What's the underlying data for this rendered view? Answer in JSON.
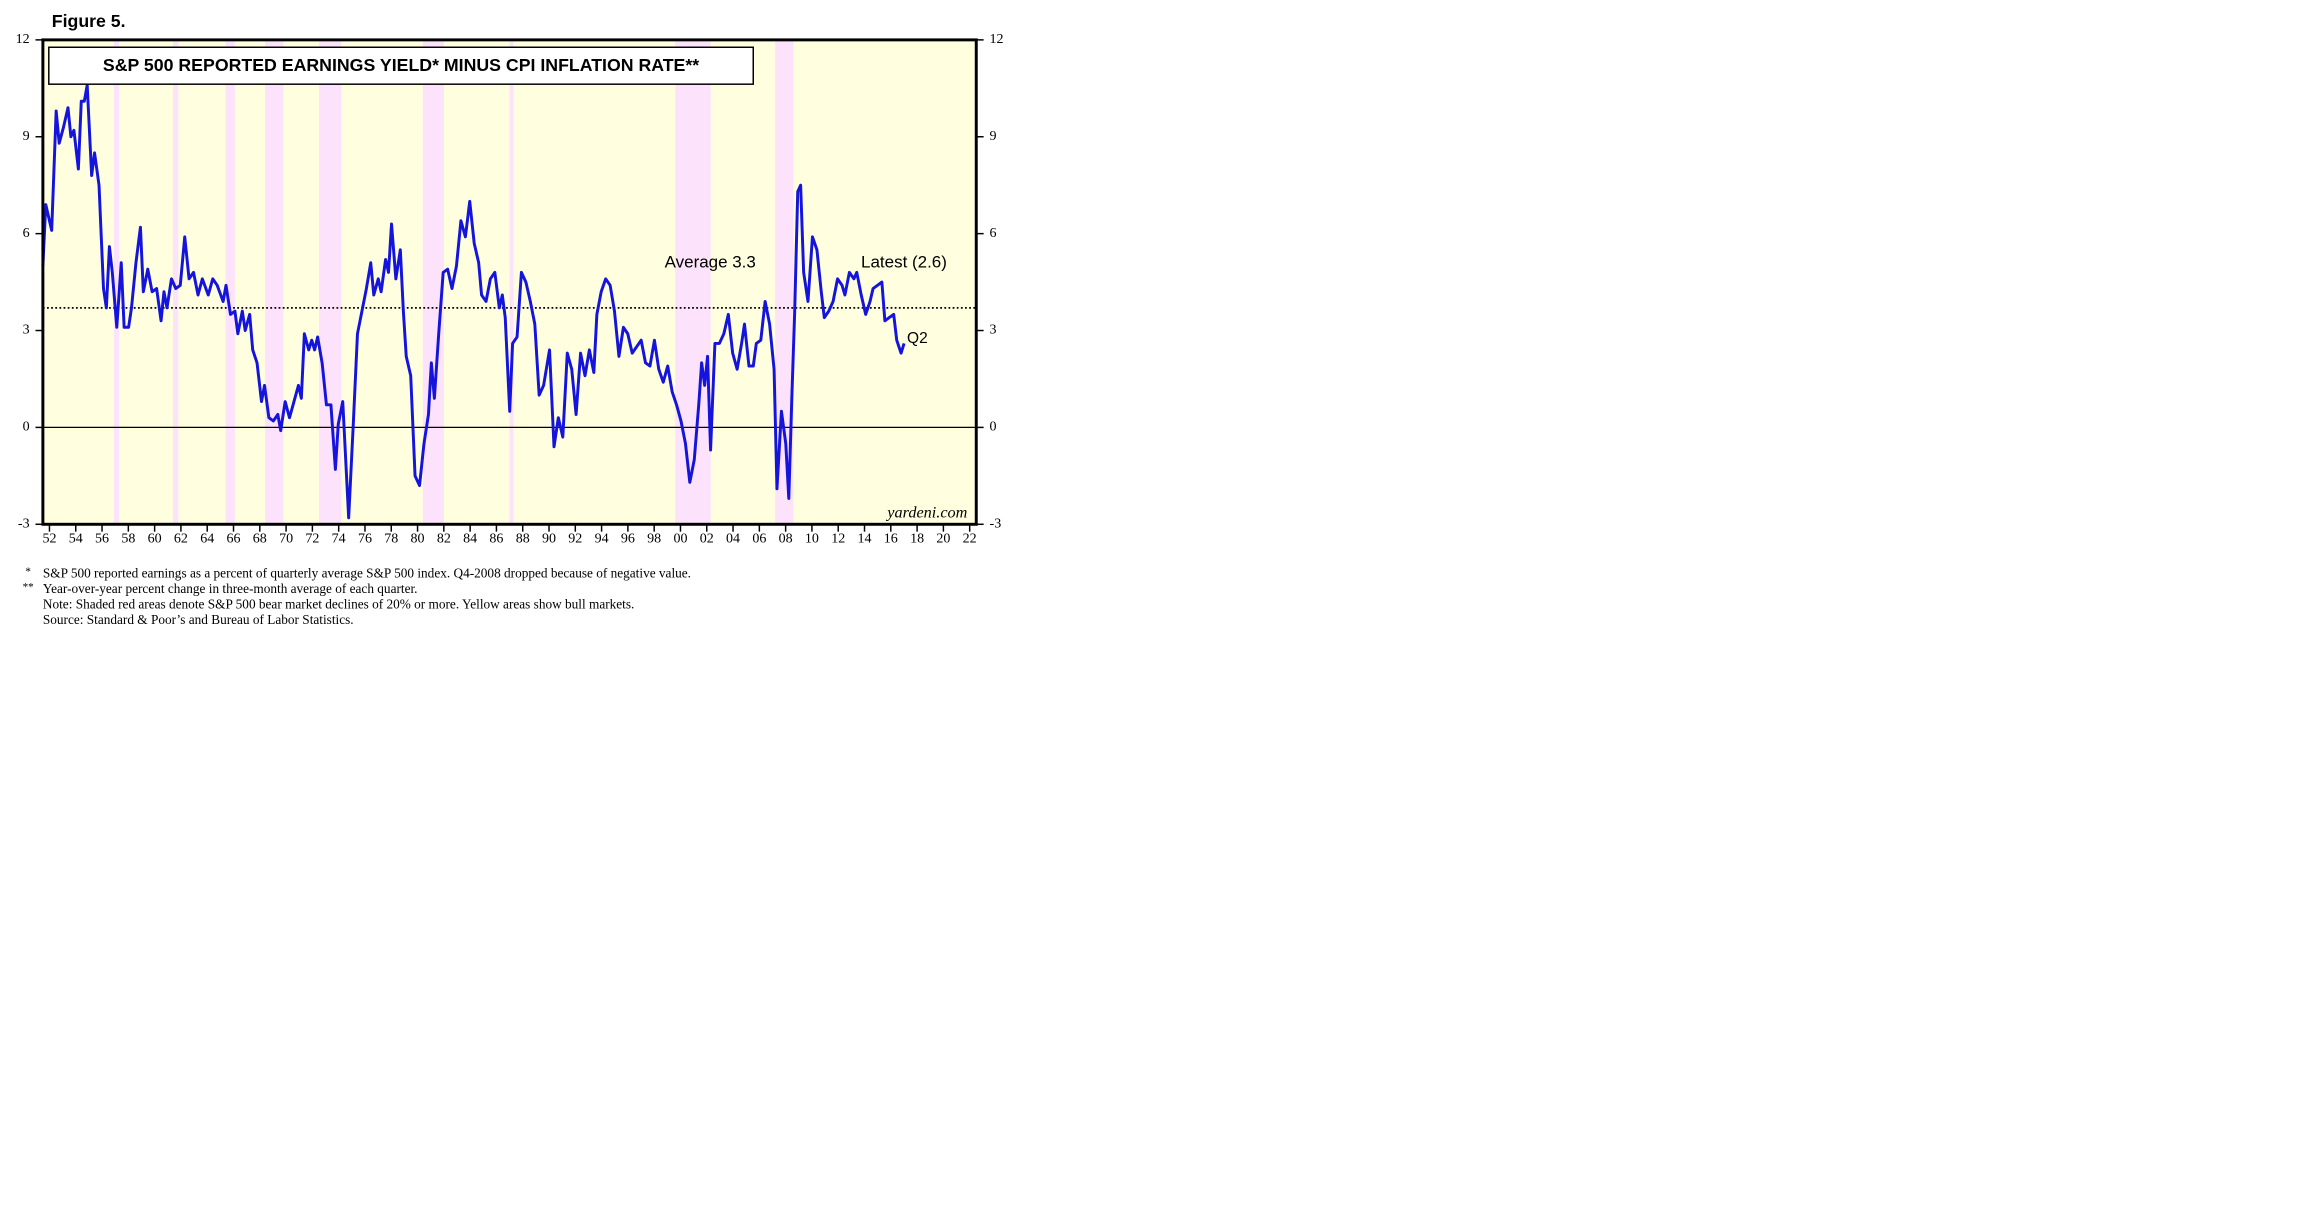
{
  "chart_data": {
    "type": "line",
    "figure_label": "Figure 5.",
    "title": "S&P 500 REPORTED EARNINGS YIELD* MINUS CPI INFLATION RATE**",
    "average_label": "Average 3.3",
    "latest_label": "Latest (2.6)",
    "last_point_label": "Q2",
    "source_label": "yardeni.com",
    "color": "#1414dc",
    "background_color": "#ffffe0",
    "shade_color": "#fde2fb",
    "zero_line": true,
    "reference_line": {
      "value": 3.7,
      "style": "dotted"
    },
    "shaded_periods": [
      {
        "start": 1956.9,
        "end": 1957.3
      },
      {
        "start": 1961.4,
        "end": 1961.8
      },
      {
        "start": 1965.4,
        "end": 1966.1
      },
      {
        "start": 1968.4,
        "end": 1969.8
      },
      {
        "start": 1972.5,
        "end": 1974.2
      },
      {
        "start": 1980.4,
        "end": 1982.0
      },
      {
        "start": 1987.0,
        "end": 1987.3
      },
      {
        "start": 1999.6,
        "end": 2002.3
      },
      {
        "start": 2007.2,
        "end": 2008.6
      }
    ],
    "xlim": [
      1951.5,
      2022.5
    ],
    "ylim": [
      -3,
      12
    ],
    "y2lim": [
      -3,
      12
    ],
    "yticks": [
      -3,
      0,
      3,
      6,
      9,
      12
    ],
    "y2ticks": [
      -3,
      0,
      3,
      6,
      9,
      12
    ],
    "xticks": [
      {
        "value": 1952,
        "label": "52"
      },
      {
        "value": 1954,
        "label": "54"
      },
      {
        "value": 1956,
        "label": "56"
      },
      {
        "value": 1958,
        "label": "58"
      },
      {
        "value": 1960,
        "label": "60"
      },
      {
        "value": 1962,
        "label": "62"
      },
      {
        "value": 1964,
        "label": "64"
      },
      {
        "value": 1966,
        "label": "66"
      },
      {
        "value": 1968,
        "label": "68"
      },
      {
        "value": 1970,
        "label": "70"
      },
      {
        "value": 1972,
        "label": "72"
      },
      {
        "value": 1974,
        "label": "74"
      },
      {
        "value": 1976,
        "label": "76"
      },
      {
        "value": 1978,
        "label": "78"
      },
      {
        "value": 1980,
        "label": "80"
      },
      {
        "value": 1982,
        "label": "82"
      },
      {
        "value": 1984,
        "label": "84"
      },
      {
        "value": 1986,
        "label": "86"
      },
      {
        "value": 1988,
        "label": "88"
      },
      {
        "value": 1990,
        "label": "90"
      },
      {
        "value": 1992,
        "label": "92"
      },
      {
        "value": 1994,
        "label": "94"
      },
      {
        "value": 1996,
        "label": "96"
      },
      {
        "value": 1998,
        "label": "98"
      },
      {
        "value": 2000,
        "label": "00"
      },
      {
        "value": 2002,
        "label": "02"
      },
      {
        "value": 2004,
        "label": "04"
      },
      {
        "value": 2006,
        "label": "06"
      },
      {
        "value": 2008,
        "label": "08"
      },
      {
        "value": 2010,
        "label": "10"
      },
      {
        "value": 2012,
        "label": "12"
      },
      {
        "value": 2014,
        "label": "14"
      },
      {
        "value": 2016,
        "label": "16"
      },
      {
        "value": 2018,
        "label": "18"
      },
      {
        "value": 2020,
        "label": "20"
      },
      {
        "value": 2022,
        "label": "22"
      }
    ],
    "x": [
      1951.5,
      1951.72,
      1952.17,
      1952.51,
      1952.74,
      1953.07,
      1953.41,
      1953.63,
      1953.86,
      1954.2,
      1954.42,
      1954.65,
      1954.87,
      1955.21,
      1955.43,
      1955.77,
      1956.11,
      1956.33,
      1956.56,
      1956.78,
      1957.12,
      1957.46,
      1957.68,
      1958.02,
      1958.24,
      1958.58,
      1958.92,
      1959.14,
      1959.48,
      1959.81,
      1960.15,
      1960.49,
      1960.71,
      1960.94,
      1961.28,
      1961.61,
      1961.95,
      1962.29,
      1962.62,
      1962.96,
      1963.3,
      1963.63,
      1964.08,
      1964.42,
      1964.76,
      1965.21,
      1965.43,
      1965.77,
      1966.11,
      1966.33,
      1966.67,
      1966.89,
      1967.23,
      1967.46,
      1967.79,
      1968.13,
      1968.36,
      1968.69,
      1969.03,
      1969.37,
      1969.59,
      1969.93,
      1970.26,
      1970.6,
      1970.94,
      1971.16,
      1971.39,
      1971.72,
      1971.95,
      1972.17,
      1972.4,
      1972.74,
      1973.07,
      1973.41,
      1973.75,
      1973.97,
      1974.31,
      1974.76,
      1975.1,
      1975.43,
      1975.77,
      1976.11,
      1976.44,
      1976.67,
      1977.01,
      1977.23,
      1977.57,
      1977.79,
      1978.02,
      1978.35,
      1978.69,
      1978.92,
      1979.14,
      1979.48,
      1979.81,
      1980.15,
      1980.49,
      1980.83,
      1981.05,
      1981.28,
      1981.61,
      1981.95,
      1982.29,
      1982.62,
      1982.96,
      1983.3,
      1983.64,
      1983.97,
      1984.31,
      1984.65,
      1984.87,
      1985.21,
      1985.54,
      1985.88,
      1986.22,
      1986.45,
      1986.67,
      1987.01,
      1987.23,
      1987.57,
      1987.9,
      1988.24,
      1988.58,
      1988.92,
      1989.25,
      1989.59,
      1990.04,
      1990.38,
      1990.71,
      1991.05,
      1991.39,
      1991.73,
      1992.06,
      1992.4,
      1992.74,
      1993.07,
      1993.41,
      1993.64,
      1993.97,
      1994.31,
      1994.65,
      1994.98,
      1995.32,
      1995.66,
      1995.99,
      1996.33,
      1996.67,
      1997.01,
      1997.34,
      1997.68,
      1998.02,
      1998.35,
      1998.69,
      1999.03,
      1999.37,
      1999.7,
      2000.04,
      2000.38,
      2000.71,
      2001.05,
      2001.39,
      2001.61,
      2001.84,
      2002.06,
      2002.29,
      2002.62,
      2002.96,
      2003.3,
      2003.64,
      2003.97,
      2004.31,
      2004.65,
      2004.87,
      2005.21,
      2005.54,
      2005.77,
      2006.11,
      2006.44,
      2006.78,
      2007.12,
      2007.34,
      2007.68,
      2008.01,
      2008.24,
      2008.47,
      2008.69,
      2008.92,
      2009.14,
      2009.37,
      2009.7,
      2010.04,
      2010.38,
      2010.71,
      2010.94,
      2011.28,
      2011.61,
      2011.95,
      2012.29,
      2012.51,
      2012.85,
      2013.19,
      2013.41,
      2013.75,
      2014.09,
      2014.42,
      2014.65,
      2014.99,
      2015.32,
      2015.55,
      2015.88,
      2016.22,
      2016.45,
      2016.78,
      2017.01
    ],
    "values": [
      5.0,
      6.9,
      6.1,
      9.8,
      8.8,
      9.3,
      9.9,
      9.0,
      9.2,
      8.0,
      10.1,
      10.1,
      10.6,
      7.8,
      8.5,
      7.5,
      4.3,
      3.7,
      5.6,
      4.8,
      3.1,
      5.1,
      3.1,
      3.1,
      3.7,
      5.1,
      6.2,
      4.2,
      4.9,
      4.2,
      4.3,
      3.3,
      4.2,
      3.7,
      4.6,
      4.3,
      4.4,
      5.9,
      4.6,
      4.8,
      4.1,
      4.6,
      4.1,
      4.6,
      4.4,
      3.9,
      4.4,
      3.5,
      3.6,
      2.9,
      3.6,
      3.0,
      3.5,
      2.4,
      2.0,
      0.8,
      1.3,
      0.3,
      0.2,
      0.4,
      -0.1,
      0.8,
      0.3,
      0.8,
      1.3,
      0.9,
      2.9,
      2.4,
      2.7,
      2.4,
      2.8,
      2.0,
      0.7,
      0.7,
      -1.3,
      0.1,
      0.8,
      -2.8,
      0.0,
      2.9,
      3.6,
      4.3,
      5.1,
      4.1,
      4.6,
      4.2,
      5.2,
      4.8,
      6.3,
      4.6,
      5.5,
      3.6,
      2.2,
      1.6,
      -1.5,
      -1.8,
      -0.5,
      0.4,
      2.0,
      0.9,
      2.9,
      4.8,
      4.9,
      4.3,
      5.0,
      6.4,
      5.9,
      7.0,
      5.7,
      5.1,
      4.1,
      3.9,
      4.6,
      4.8,
      3.7,
      4.1,
      3.4,
      0.5,
      2.6,
      2.8,
      4.8,
      4.5,
      3.9,
      3.2,
      1.0,
      1.3,
      2.4,
      -0.6,
      0.3,
      -0.3,
      2.3,
      1.8,
      0.4,
      2.3,
      1.6,
      2.4,
      1.7,
      3.5,
      4.2,
      4.6,
      4.4,
      3.6,
      2.2,
      3.1,
      2.9,
      2.3,
      2.5,
      2.7,
      2.0,
      1.9,
      2.7,
      1.8,
      1.4,
      1.9,
      1.1,
      0.7,
      0.2,
      -0.5,
      -1.7,
      -1.0,
      0.7,
      2.0,
      1.3,
      2.2,
      -0.7,
      2.6,
      2.6,
      2.9,
      3.5,
      2.3,
      1.8,
      2.6,
      3.2,
      1.9,
      1.9,
      2.6,
      2.7,
      3.9,
      3.2,
      1.8,
      -1.9,
      0.5,
      -0.5,
      -2.2,
      0.9,
      3.6,
      7.3,
      7.5,
      4.8,
      3.9,
      5.9,
      5.5,
      4.2,
      3.4,
      3.6,
      3.9,
      4.6,
      4.4,
      4.1,
      4.8,
      4.6,
      4.8,
      4.1,
      3.5,
      3.9,
      4.3,
      4.4,
      4.5,
      3.3,
      3.4,
      3.5,
      2.7,
      2.3,
      2.6
    ],
    "footnotes": [
      {
        "marker": "*",
        "text": "S&P 500 reported earnings as a percent of quarterly average S&P 500 index. Q4-2008 dropped because of negative value."
      },
      {
        "marker": "**",
        "text": "Year-over-year percent change in three-month average of each quarter."
      },
      {
        "text": "Note: Shaded red areas denote S&P 500 bear market declines of 20% or more. Yellow areas show bull markets."
      },
      {
        "text": "Source: Standard & Poor’s and Bureau of Labor Statistics."
      }
    ]
  }
}
